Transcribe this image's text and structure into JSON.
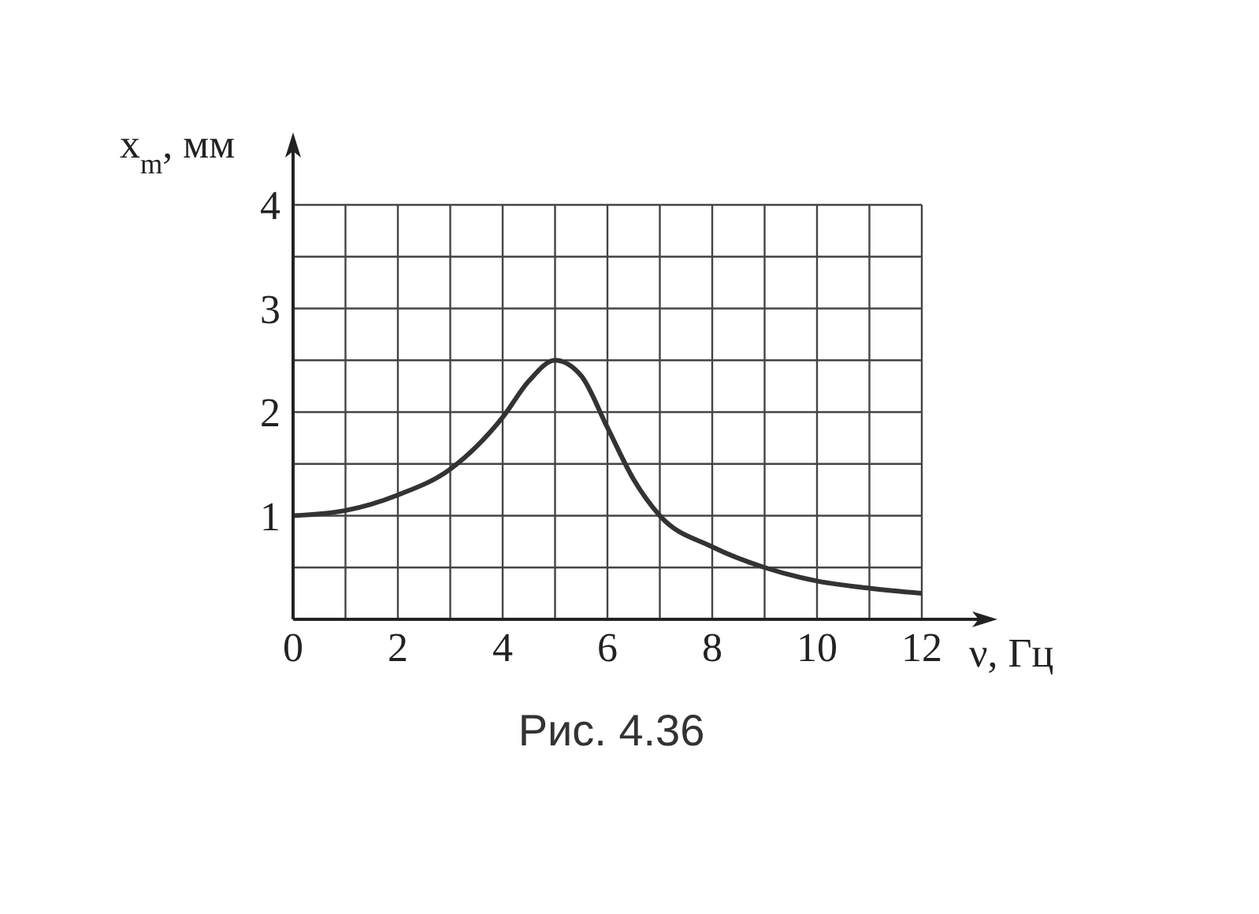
{
  "chart_data": {
    "type": "line",
    "xlabel": "ν, Гц",
    "ylabel": "x$_{m}$, мм",
    "annotations": [
      "Рис. 4.36"
    ],
    "x": [
      0,
      1,
      2,
      3,
      4,
      4.5,
      5,
      5.5,
      6,
      6.5,
      7,
      8,
      9,
      10,
      11,
      12
    ],
    "series": [
      {
        "color": "#333333",
        "values": [
          1.0,
          1.05,
          1.2,
          1.45,
          1.95,
          2.3,
          2.5,
          2.35,
          1.85,
          1.35,
          1.0,
          0.7,
          0.5,
          0.37,
          0.3,
          0.25
        ]
      }
    ],
    "xlim": [
      0,
      12
    ],
    "ylim": [
      0,
      4
    ],
    "xticks": [
      0,
      {
        "value": 1,
        "label": null
      },
      2,
      {
        "value": 3,
        "label": null
      },
      4,
      {
        "value": 5,
        "label": null
      },
      6,
      {
        "value": 7,
        "label": null
      },
      8,
      {
        "value": 9,
        "label": null
      },
      10,
      {
        "value": 11,
        "label": null
      },
      12
    ],
    "yticks": [
      {
        "value": 0,
        "label": null
      },
      {
        "value": 0.5,
        "label": null
      },
      1,
      {
        "value": 1.5,
        "label": null
      },
      2,
      {
        "value": 2.5,
        "label": null
      },
      3,
      {
        "value": 3.5,
        "label": null
      },
      4
    ],
    "grid": true,
    "marker": "none",
    "line_style": "solid"
  }
}
